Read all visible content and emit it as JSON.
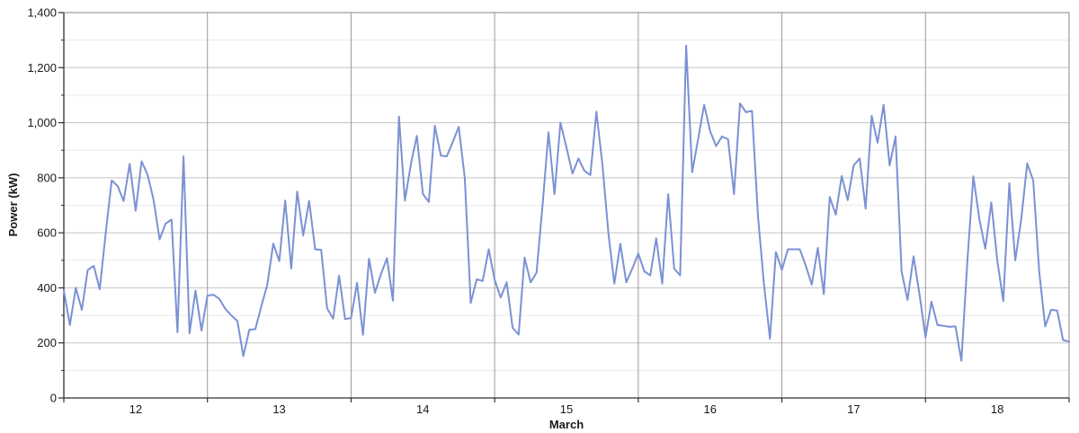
{
  "chart_data": {
    "type": "line",
    "title": "",
    "xlabel": "March",
    "ylabel": "Power (kW)",
    "legend_position": "none",
    "x_range_days": [
      12,
      19
    ],
    "x_tick_labels": [
      "12",
      "13",
      "14",
      "15",
      "16",
      "17",
      "18"
    ],
    "ylim": [
      0,
      1400
    ],
    "y_ticks": [
      0,
      200,
      400,
      600,
      800,
      1000,
      1200,
      1400
    ],
    "y_tick_labels": [
      "0",
      "200",
      "400",
      "600",
      "800",
      "1,000",
      "1,200",
      "1,400"
    ],
    "y_minor_ticks": [
      100,
      300,
      500,
      700,
      900,
      1100,
      1300
    ],
    "grid": {
      "horizontal_major": true,
      "horizontal_minor": true,
      "vertical_daily": true
    },
    "colors": {
      "line": "#7B91D4",
      "grid_major": "#c3c3c3",
      "grid_minor": "#eaeaea",
      "grid_day": "#9a9a9a",
      "axis": "#2e2e2e",
      "border": "#8a8a8a",
      "text": "#191919",
      "background": "#ffffff"
    },
    "series": [
      {
        "name": "Power",
        "color": "#7B91D4",
        "samples_per_day": 24,
        "values": [
          390,
          265,
          400,
          320,
          465,
          480,
          395,
          600,
          790,
          770,
          715,
          850,
          680,
          860,
          810,
          720,
          576,
          633,
          648,
          239,
          878,
          235,
          390,
          245,
          372,
          375,
          360,
          323,
          300,
          280,
          152,
          248,
          250,
          333,
          412,
          561,
          497,
          717,
          470,
          750,
          590,
          716,
          540,
          538,
          326,
          288,
          444,
          287,
          290,
          418,
          229,
          506,
          382,
          450,
          508,
          353,
          1022,
          717,
          850,
          952,
          741,
          712,
          989,
          880,
          878,
          930,
          985,
          800,
          345,
          431,
          425,
          540,
          430,
          365,
          420,
          255,
          230,
          510,
          420,
          455,
          700,
          965,
          740,
          1000,
          910,
          815,
          870,
          825,
          810,
          1040,
          850,
          600,
          415,
          560,
          420,
          470,
          525,
          460,
          445,
          580,
          415,
          740,
          470,
          445,
          1280,
          820,
          940,
          1065,
          970,
          915,
          950,
          940,
          740,
          1070,
          1038,
          1043,
          660,
          415,
          215,
          530,
          465,
          540,
          540,
          540,
          480,
          412,
          545,
          377,
          730,
          666,
          806,
          719,
          845,
          870,
          688,
          1025,
          927,
          1065,
          845,
          950,
          460,
          356,
          515,
          377,
          220,
          350,
          265,
          262,
          258,
          260,
          135,
          500,
          805,
          650,
          542,
          710,
          500,
          352,
          780,
          500,
          650,
          852,
          790,
          460,
          260,
          320,
          318,
          210,
          205
        ]
      }
    ]
  }
}
